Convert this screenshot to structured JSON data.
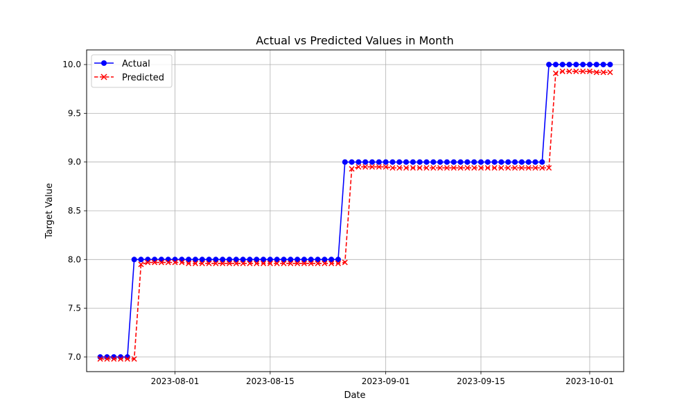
{
  "chart_data": {
    "type": "line",
    "title": "Actual vs Predicted Values in Month",
    "xlabel": "Date",
    "ylabel": "Target Value",
    "x_start": "2023-07-21",
    "x_end": "2023-10-03",
    "xlim": [
      "2023-07-19",
      "2023-10-06"
    ],
    "ylim": [
      6.85,
      10.15
    ],
    "x_ticks": [
      "2023-08-01",
      "2023-08-15",
      "2023-09-01",
      "2023-09-15",
      "2023-10-01"
    ],
    "y_ticks": [
      "7.0",
      "7.5",
      "8.0",
      "8.5",
      "9.0",
      "9.5",
      "10.0"
    ],
    "grid": true,
    "legend_position": "top-left",
    "series": [
      {
        "name": "Actual",
        "color": "#0000ff",
        "line_style": "solid",
        "marker": "circle",
        "values": [
          7,
          7,
          7,
          7,
          7,
          8,
          8,
          8,
          8,
          8,
          8,
          8,
          8,
          8,
          8,
          8,
          8,
          8,
          8,
          8,
          8,
          8,
          8,
          8,
          8,
          8,
          8,
          8,
          8,
          8,
          8,
          8,
          8,
          8,
          8,
          8,
          9,
          9,
          9,
          9,
          9,
          9,
          9,
          9,
          9,
          9,
          9,
          9,
          9,
          9,
          9,
          9,
          9,
          9,
          9,
          9,
          9,
          9,
          9,
          9,
          9,
          9,
          9,
          9,
          9,
          9,
          10,
          10,
          10,
          10,
          10,
          10,
          10,
          10,
          10,
          10
        ]
      },
      {
        "name": "Predicted",
        "color": "#ff0000",
        "line_style": "dashed",
        "marker": "x",
        "values": [
          6.98,
          6.98,
          6.98,
          6.98,
          6.98,
          6.98,
          7.95,
          7.97,
          7.97,
          7.97,
          7.97,
          7.97,
          7.97,
          7.96,
          7.96,
          7.96,
          7.96,
          7.96,
          7.96,
          7.96,
          7.96,
          7.96,
          7.96,
          7.96,
          7.96,
          7.96,
          7.96,
          7.96,
          7.96,
          7.96,
          7.96,
          7.96,
          7.96,
          7.96,
          7.96,
          7.96,
          7.97,
          8.93,
          8.95,
          8.95,
          8.95,
          8.95,
          8.95,
          8.94,
          8.94,
          8.94,
          8.94,
          8.94,
          8.94,
          8.94,
          8.94,
          8.94,
          8.94,
          8.94,
          8.94,
          8.94,
          8.94,
          8.94,
          8.94,
          8.94,
          8.94,
          8.94,
          8.94,
          8.94,
          8.94,
          8.94,
          8.94,
          9.91,
          9.93,
          9.93,
          9.93,
          9.93,
          9.93,
          9.92,
          9.92,
          9.92
        ]
      }
    ]
  }
}
